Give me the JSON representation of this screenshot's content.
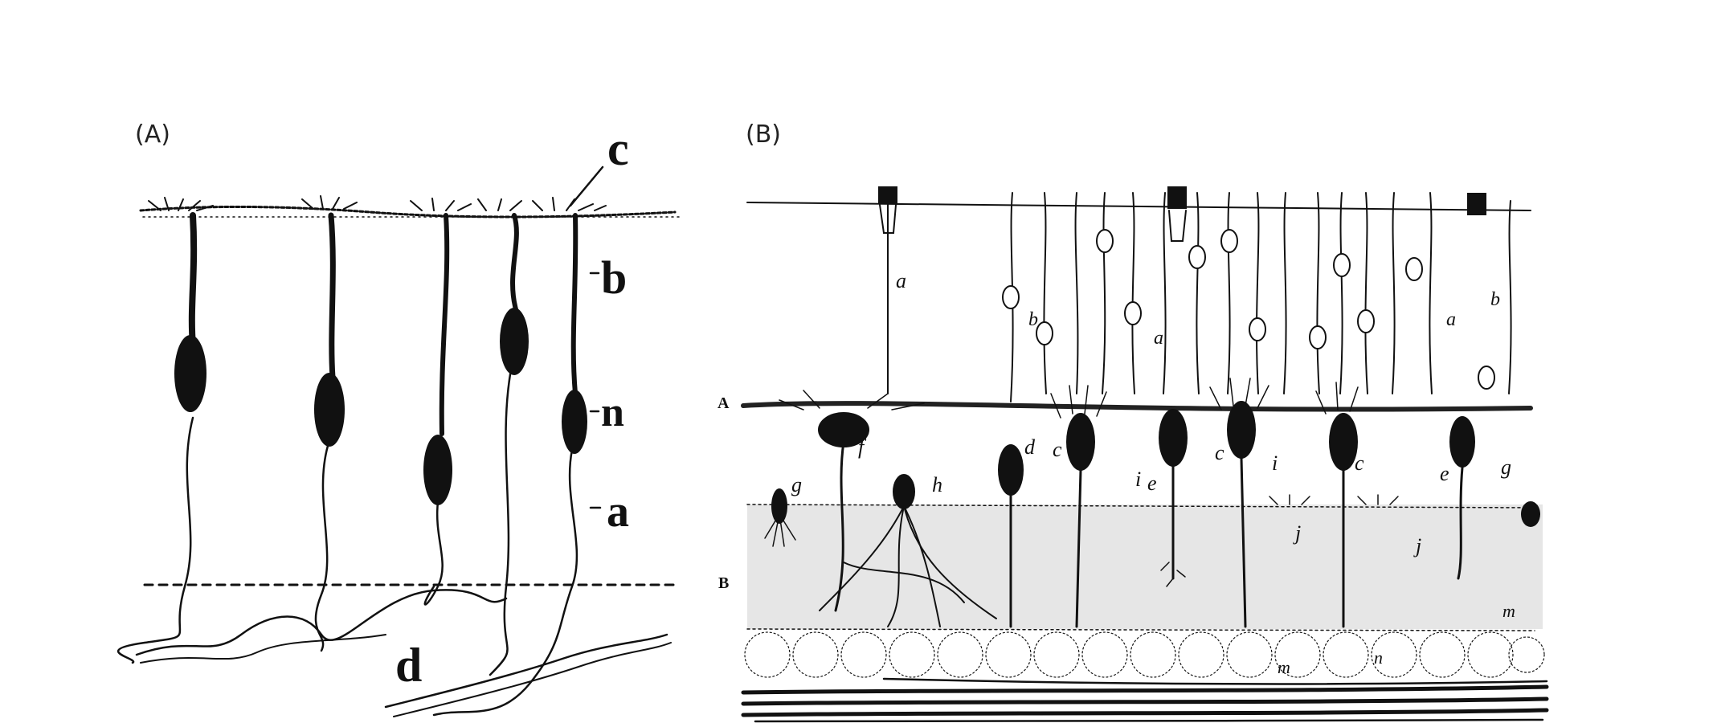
{
  "figure": {
    "panels": [
      {
        "label": "(A)",
        "letters": {
          "c": "c",
          "b": "b",
          "n": "n",
          "a": "a",
          "d": "d"
        }
      },
      {
        "label": "(B)",
        "layer_labels": {
          "A": "A",
          "B": "B"
        },
        "letters": {
          "a1": "a",
          "a2": "a",
          "a3": "a",
          "b1": "b",
          "b2": "b",
          "c1": "c",
          "c2": "c",
          "c3": "c",
          "d": "d",
          "e1": "e",
          "e2": "e",
          "f": "f",
          "g1": "g",
          "g2": "g",
          "h": "h",
          "i1": "i",
          "i2": "i",
          "j1": "j",
          "j2": "j",
          "m1": "m",
          "m2": "m",
          "n": "n"
        }
      }
    ]
  }
}
